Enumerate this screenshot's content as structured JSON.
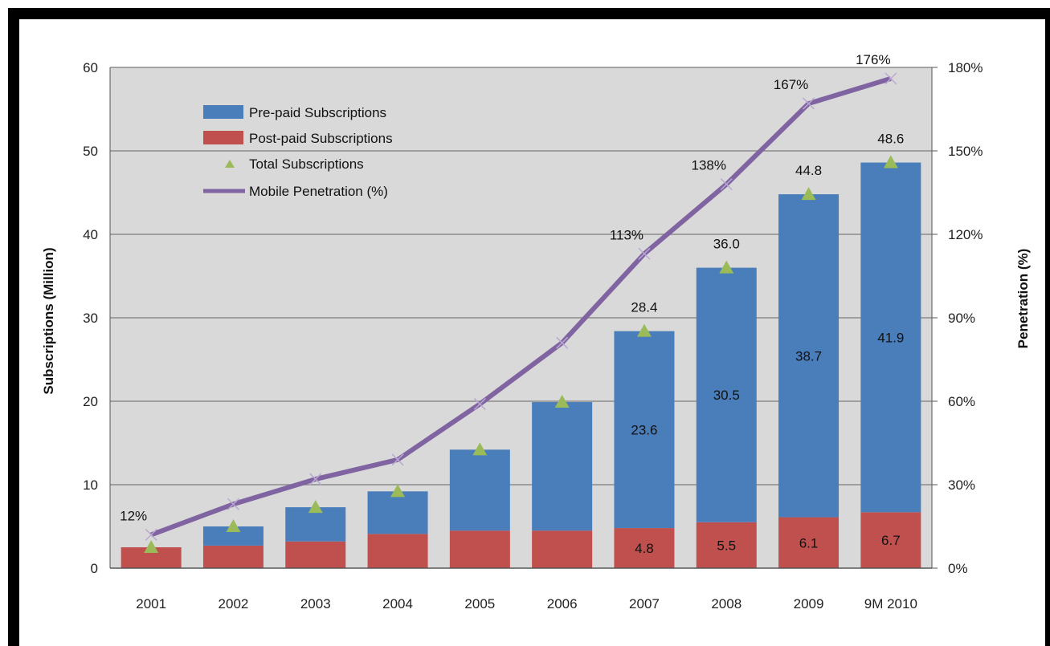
{
  "colors": {
    "prepaid": "#4a7ebb",
    "postpaid": "#c0504d",
    "total_marker": "#9bbb59",
    "penetration_line": "#8064a2",
    "plot_bg": "#d9d9d9",
    "gridline": "#8c8c8c"
  },
  "chart_data": {
    "type": "bar",
    "stacked": true,
    "categories": [
      "2001",
      "2002",
      "2003",
      "2004",
      "2005",
      "2006",
      "2007",
      "2008",
      "2009",
      "9M 2010"
    ],
    "series": [
      {
        "name": "Pre-paid Subscriptions",
        "axis": "left",
        "type": "bar",
        "values": [
          0.0,
          2.3,
          4.1,
          5.1,
          9.7,
          15.4,
          23.6,
          30.5,
          38.7,
          41.9
        ]
      },
      {
        "name": "Post-paid Subscriptions",
        "axis": "left",
        "type": "bar",
        "values": [
          2.5,
          2.7,
          3.2,
          4.1,
          4.5,
          4.5,
          4.8,
          5.5,
          6.1,
          6.7
        ]
      },
      {
        "name": "Total Subscriptions",
        "axis": "left",
        "type": "scatter",
        "marker": "triangle",
        "values": [
          2.5,
          5.0,
          7.3,
          9.2,
          14.2,
          19.9,
          28.4,
          36.0,
          44.8,
          48.6
        ]
      },
      {
        "name": "Mobile Penetration (%)",
        "axis": "right",
        "type": "line",
        "values": [
          12,
          23,
          32,
          39,
          59,
          81,
          113,
          138,
          167,
          176
        ]
      }
    ],
    "bar_value_labels": {
      "prepaid": [
        null,
        null,
        null,
        null,
        null,
        null,
        "23.6",
        "30.5",
        "38.7",
        "41.9"
      ],
      "postpaid": [
        null,
        null,
        null,
        null,
        null,
        null,
        "4.8",
        "5.5",
        "6.1",
        "6.7"
      ],
      "total": [
        null,
        null,
        null,
        null,
        null,
        null,
        "28.4",
        "36.0",
        "44.8",
        "48.6"
      ],
      "penetration": [
        "12%",
        null,
        null,
        null,
        null,
        null,
        "113%",
        "138%",
        "167%",
        "176%"
      ]
    },
    "ylabel": "Subscriptions (Million)",
    "y2label": "Penetration  (%)",
    "ylim": [
      0,
      60
    ],
    "yticks": [
      "0",
      "10",
      "20",
      "30",
      "40",
      "50",
      "60"
    ],
    "y2lim": [
      0,
      180
    ],
    "y2ticks": [
      "0%",
      "30%",
      "60%",
      "90%",
      "120%",
      "150%",
      "180%"
    ],
    "grid": true,
    "legend_position": "top-left"
  }
}
